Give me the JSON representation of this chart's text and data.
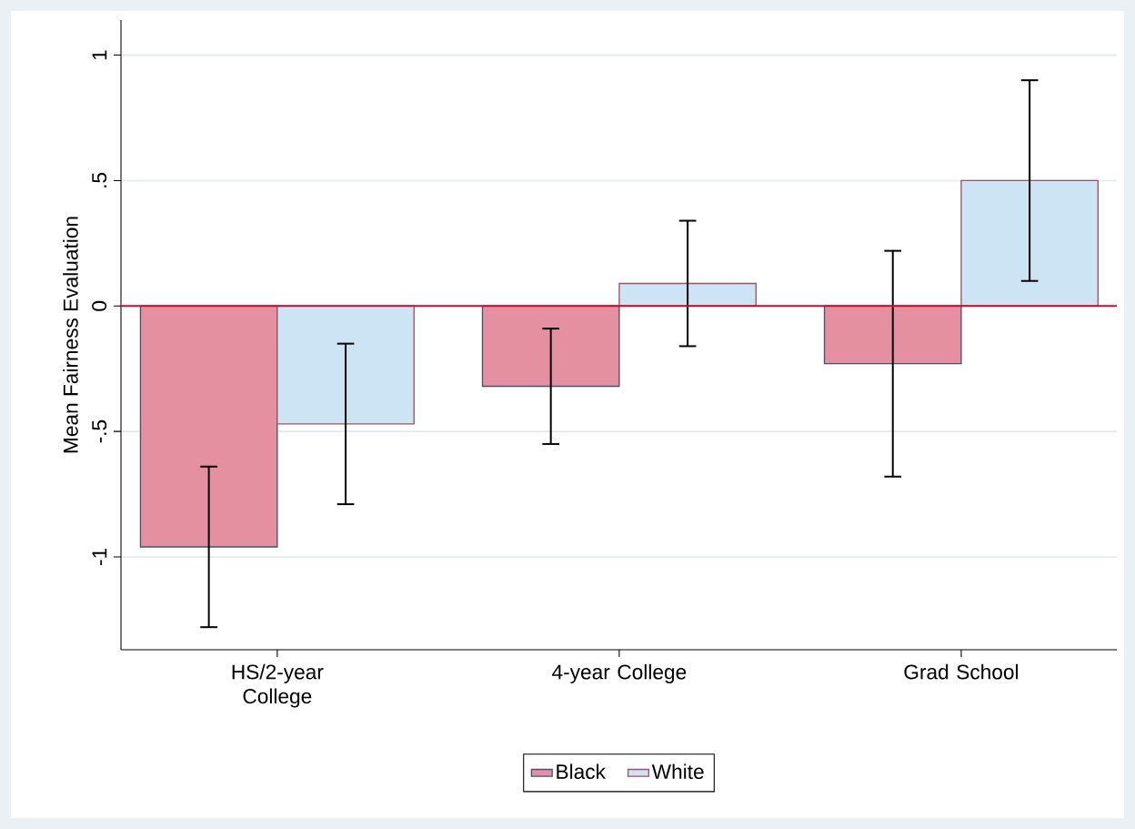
{
  "chart_data": {
    "type": "bar",
    "ylabel": "Mean Fairness Evaluation",
    "categories": [
      "HS/2-year College",
      "4-year College",
      "Grad School"
    ],
    "series": [
      {
        "name": "Black",
        "color": "#e490a0",
        "values": [
          -0.96,
          -0.32,
          -0.23
        ],
        "errors": [
          0.32,
          0.23,
          0.45
        ]
      },
      {
        "name": "White",
        "color": "#cce4f4",
        "values": [
          -0.47,
          0.09,
          0.5
        ],
        "errors": [
          0.32,
          0.25,
          0.4
        ]
      }
    ],
    "ylim": [
      -1.37,
      1.14
    ],
    "yticks": [
      -1,
      {
        "value": -0.5,
        "label": "-.5"
      },
      0,
      {
        "value": 0.5,
        "label": ".5"
      },
      1
    ],
    "ref_lines": [
      {
        "axis": "y",
        "value": 0,
        "color": "#c8102e"
      }
    ],
    "grid": "y",
    "legend": "bottom"
  }
}
